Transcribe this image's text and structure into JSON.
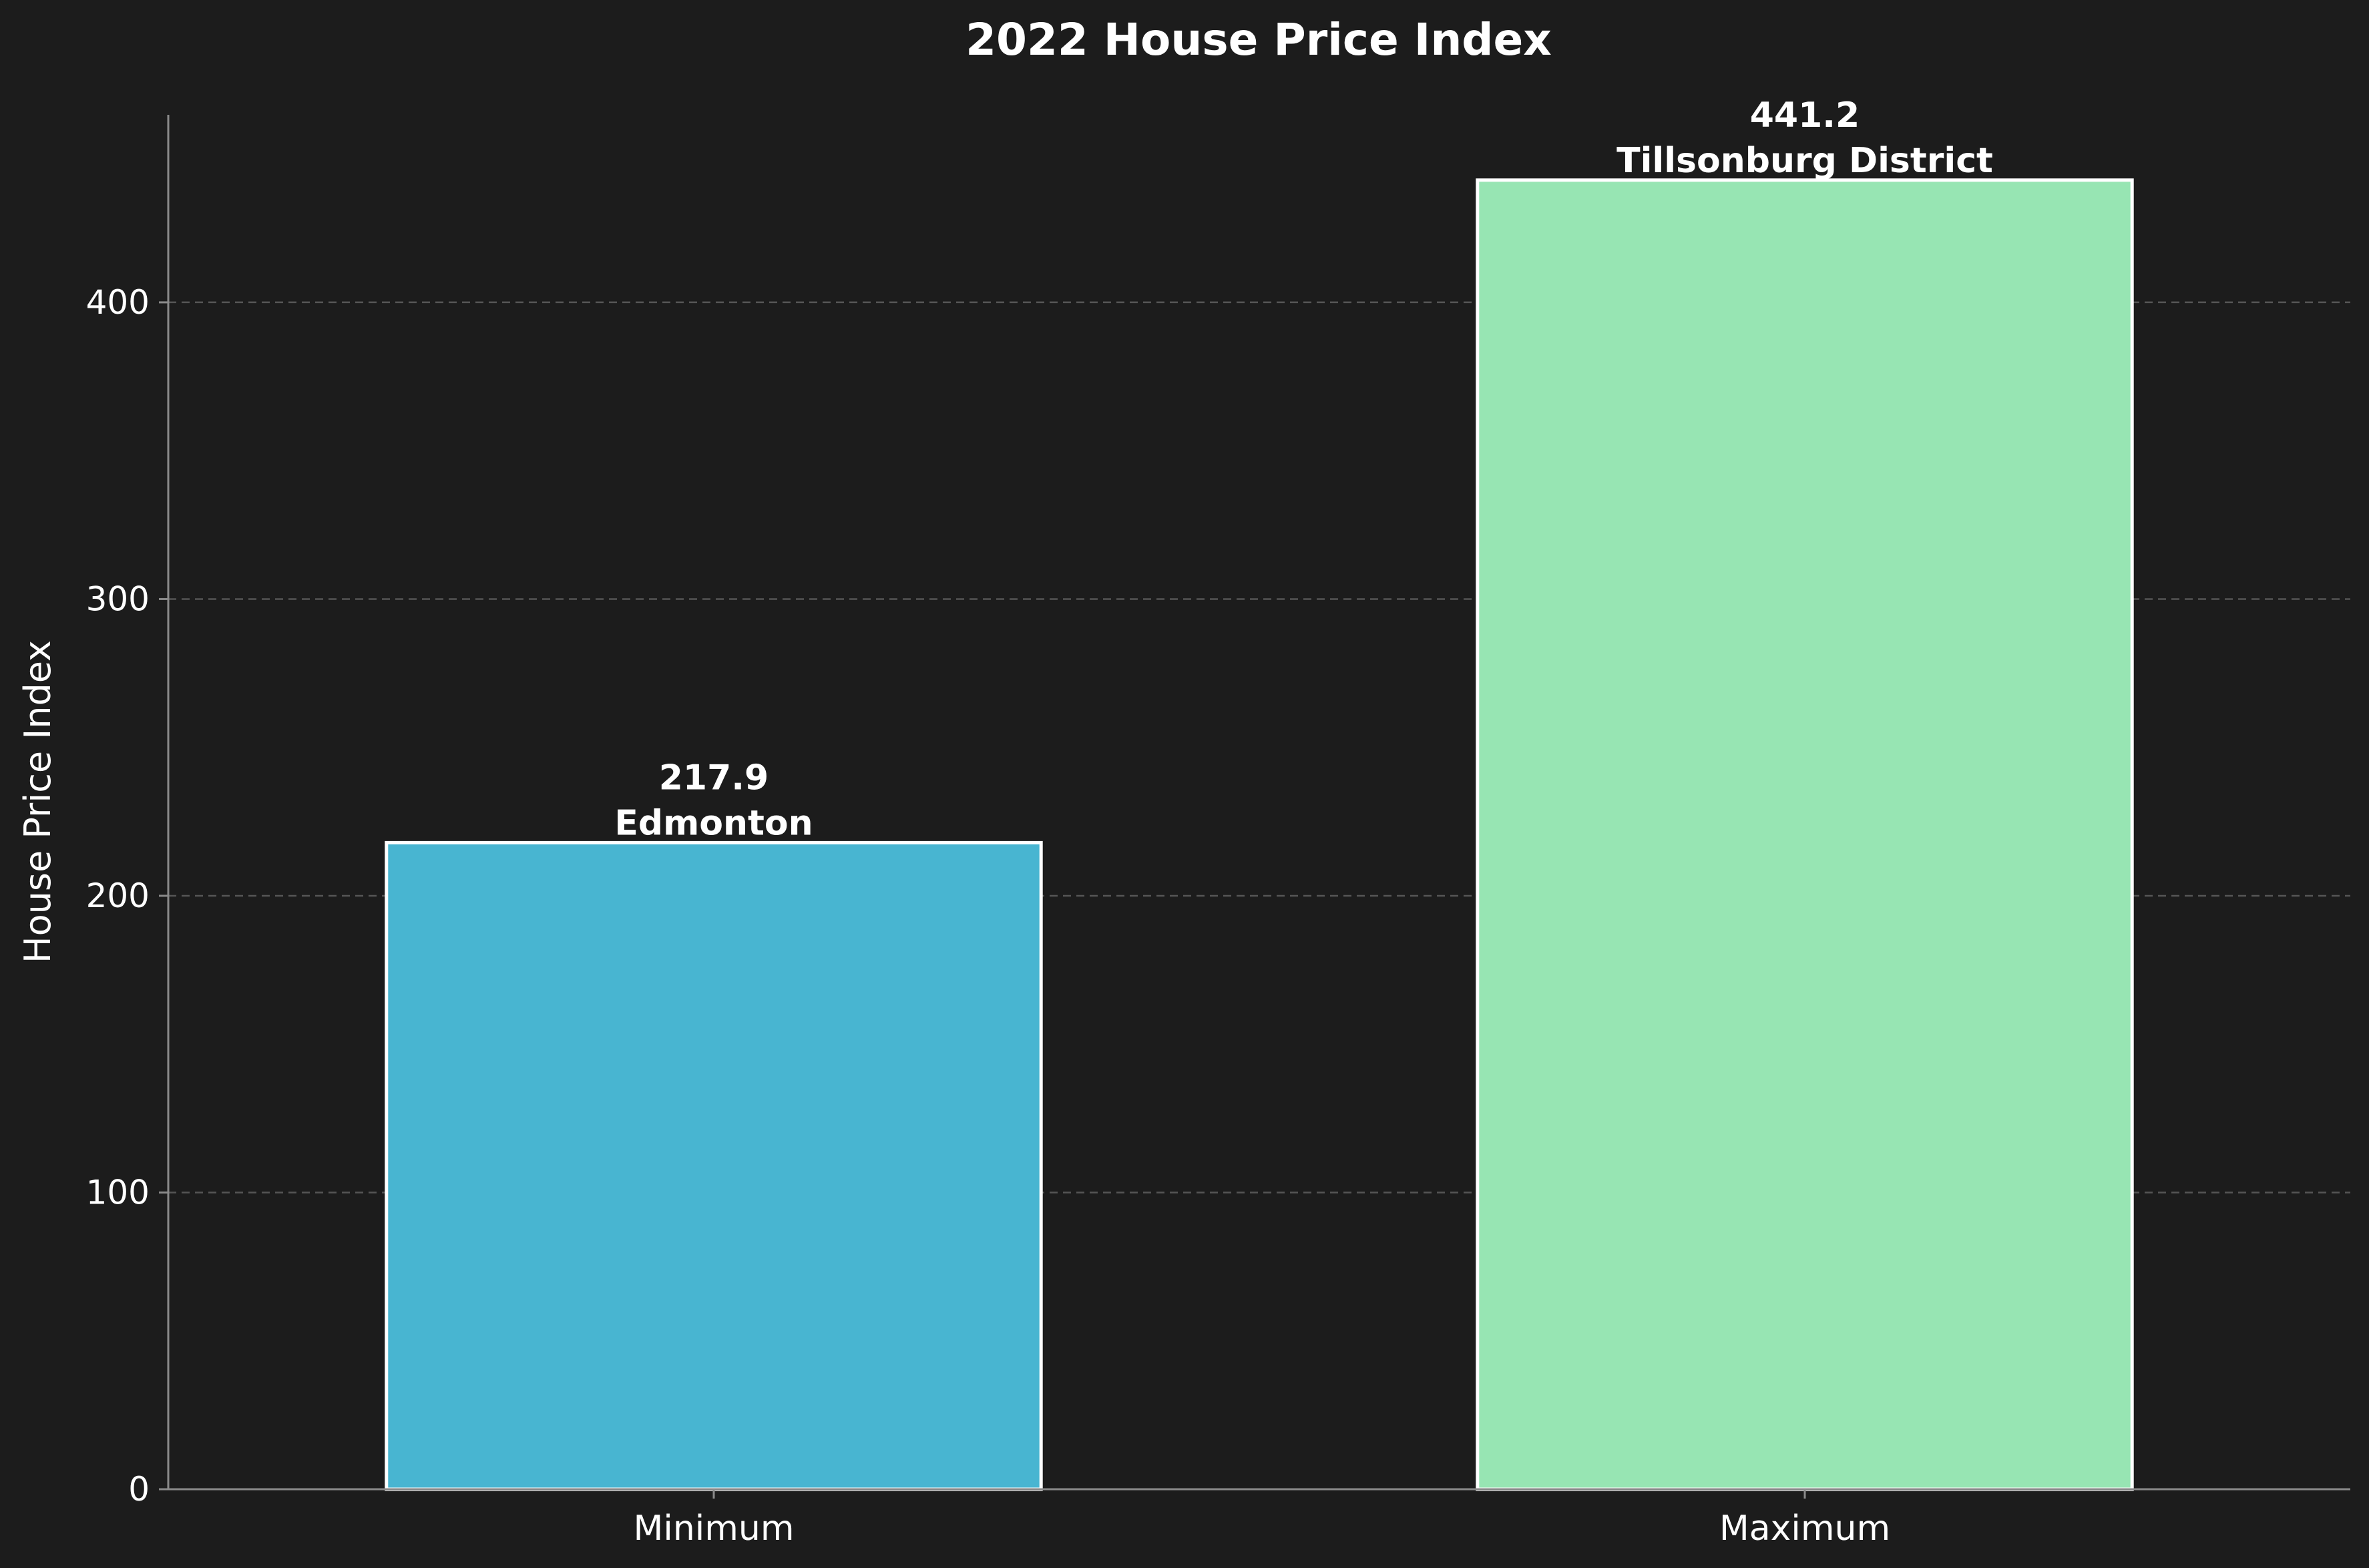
{
  "chart_data": {
    "type": "bar",
    "title": "2022 House Price Index",
    "xlabel": "",
    "ylabel": "House Price Index",
    "categories": [
      "Minimum",
      "Maximum"
    ],
    "values": [
      217.9,
      441.2
    ],
    "value_labels": [
      "217.9",
      "441.2"
    ],
    "bar_annotations": [
      "Edmonton",
      "Tillsonburg District"
    ],
    "bar_colors": [
      "#48b5d1",
      "#97e5b3"
    ],
    "ylim": [
      0,
      463.2
    ],
    "yticks": [
      0,
      100,
      200,
      300,
      400
    ],
    "grid": "y-dashed",
    "legend": "none"
  },
  "colors": {
    "background": "#1c1c1c",
    "text": "#ffffff",
    "axis": "#8a8a8a",
    "grid": "#555555",
    "bar_edge": "#ffffff"
  }
}
